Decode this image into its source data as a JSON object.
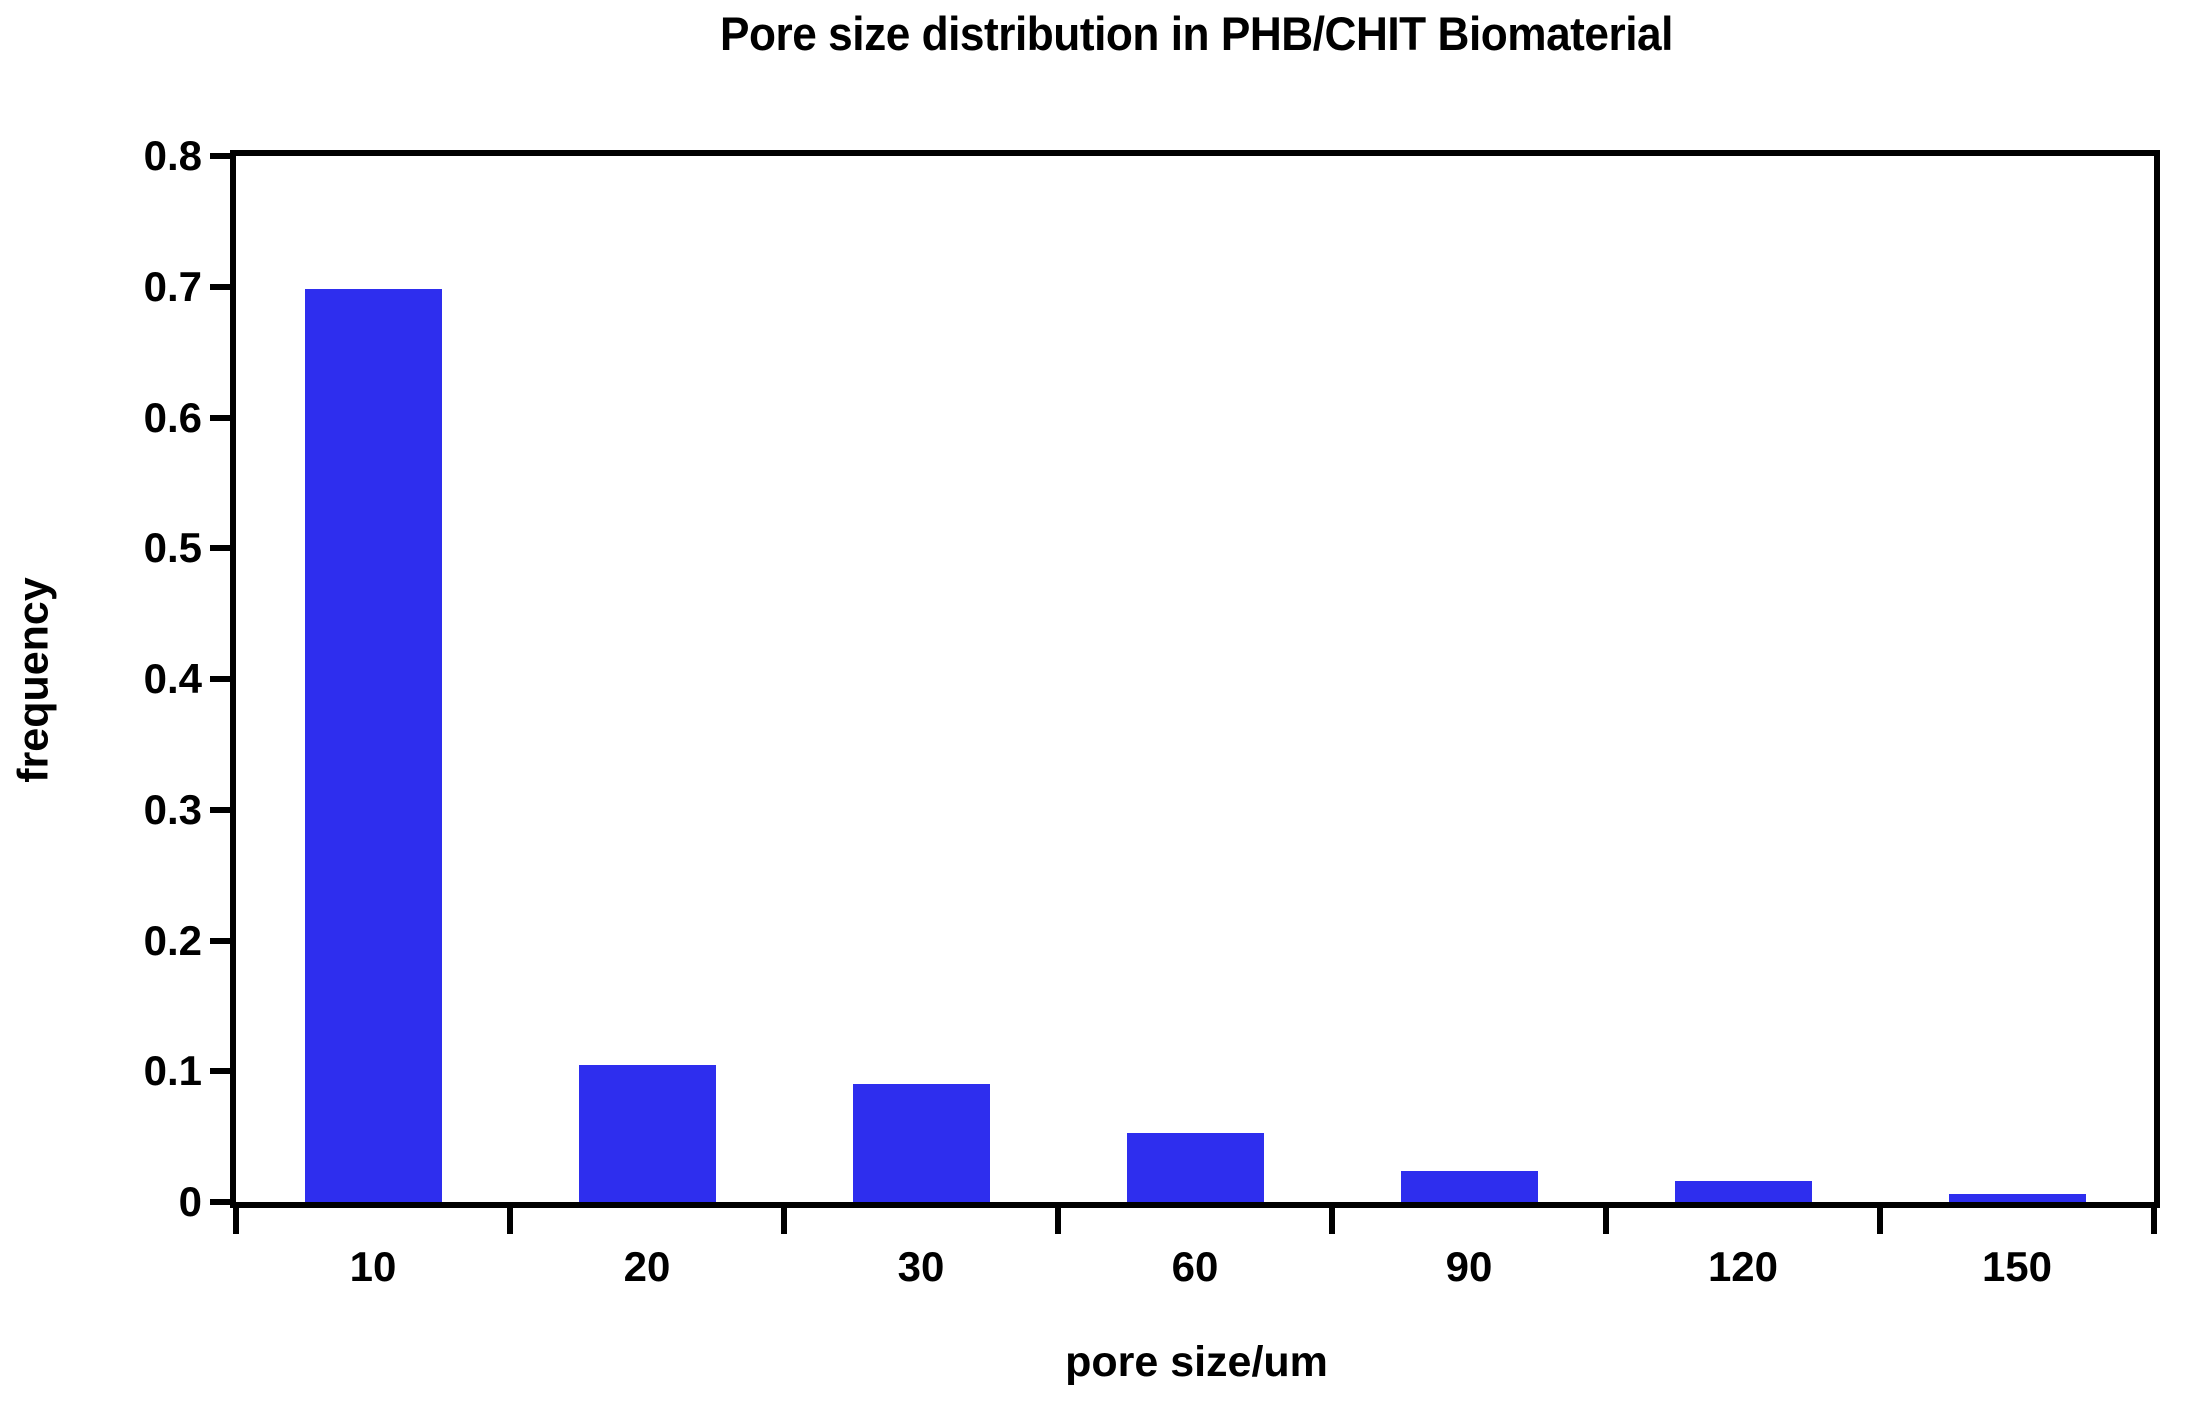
{
  "chart_data": {
    "type": "bar",
    "title": "Pore size distribution in PHB/CHIT Biomaterial",
    "xlabel": "pore size/um",
    "ylabel": "frequency",
    "categories": [
      "10",
      "20",
      "30",
      "60",
      "90",
      "120",
      "150"
    ],
    "values": [
      0.698,
      0.105,
      0.09,
      0.053,
      0.024,
      0.016,
      0.006
    ],
    "ylim": [
      0,
      0.8
    ],
    "ytick_step": 0.1,
    "ytick_labels": [
      "0",
      "0.1",
      "0.2",
      "0.3",
      "0.4",
      "0.5",
      "0.6",
      "0.7",
      "0.8"
    ],
    "grid": false,
    "legend": "none",
    "bar_color": "#2e2eee",
    "axis_color": "#000000",
    "background_color": "#ffffff",
    "bar_width_fraction": 0.5
  }
}
